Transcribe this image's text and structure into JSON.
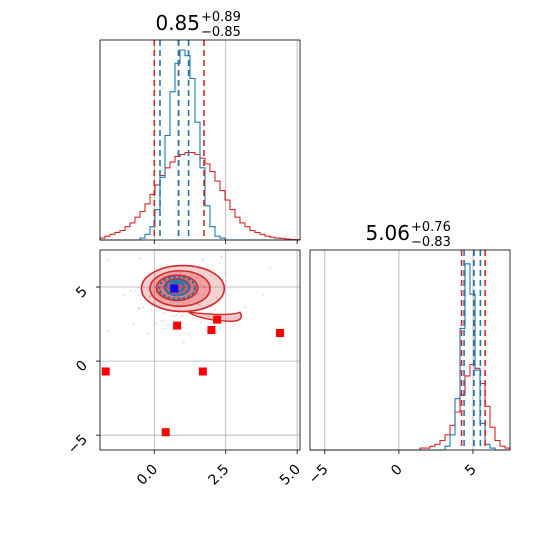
{
  "chart_data": {
    "type": "corner",
    "colors": {
      "blue": "#1f77b4",
      "red": "#d62728",
      "marker_red": "#ff0000",
      "marker_blue": "#0000ff",
      "grid": "#b0b0b0"
    },
    "param_x": {
      "title": {
        "median": "0.85",
        "plus": "+0.89",
        "minus": "−0.85"
      },
      "range": [
        -1.9,
        5.1
      ],
      "ticks": [
        0,
        2.5,
        5
      ],
      "tick_labels": [
        "0.0",
        "2.5",
        "5.0"
      ],
      "quantiles_blue": [
        0.2,
        0.85,
        1.2
      ],
      "quantiles_red": [
        0.0,
        0.85,
        1.74
      ],
      "hist_red": [
        0.01,
        0.02,
        0.03,
        0.04,
        0.05,
        0.07,
        0.09,
        0.12,
        0.15,
        0.19,
        0.24,
        0.29,
        0.34,
        0.38,
        0.41,
        0.44,
        0.45,
        0.46,
        0.46,
        0.45,
        0.43,
        0.4,
        0.36,
        0.31,
        0.26,
        0.21,
        0.16,
        0.12,
        0.09,
        0.07,
        0.05,
        0.04,
        0.03,
        0.02,
        0.015,
        0.01,
        0.008,
        0.005,
        0.003,
        0.002
      ],
      "hist_blue": [
        0,
        0,
        0,
        0,
        0,
        0,
        0,
        0,
        0.01,
        0.03,
        0.07,
        0.16,
        0.33,
        0.55,
        0.78,
        0.93,
        1.0,
        0.97,
        0.85,
        0.62,
        0.38,
        0.18,
        0.07,
        0.02,
        0.01,
        0,
        0,
        0,
        0,
        0,
        0,
        0,
        0,
        0,
        0,
        0,
        0,
        0,
        0,
        0
      ],
      "hist_bins": [
        -1.9,
        5.1
      ]
    },
    "param_y": {
      "title": {
        "median": "5.06",
        "plus": "+0.76",
        "minus": "−0.83"
      },
      "range": [
        -6,
        7.5
      ],
      "ticks": [
        -5,
        0,
        5
      ],
      "tick_labels": [
        "−5",
        "0",
        "5"
      ],
      "quantiles_blue": [
        4.4,
        5.06,
        5.5
      ],
      "quantiles_red": [
        4.23,
        5.06,
        5.82
      ],
      "hist_red": [
        0,
        0,
        0,
        0,
        0,
        0,
        0,
        0,
        0,
        0,
        0,
        0,
        0,
        0,
        0,
        0,
        0,
        0,
        0,
        0,
        0,
        0,
        0.01,
        0.01,
        0.02,
        0.03,
        0.05,
        0.08,
        0.13,
        0.2,
        0.29,
        0.39,
        0.45,
        0.43,
        0.35,
        0.23,
        0.12,
        0.05,
        0.02,
        0.01
      ],
      "hist_blue": [
        0,
        0,
        0,
        0,
        0,
        0,
        0,
        0,
        0,
        0,
        0,
        0,
        0,
        0,
        0,
        0,
        0,
        0,
        0,
        0,
        0,
        0,
        0,
        0,
        0,
        0,
        0,
        0.02,
        0.08,
        0.27,
        0.64,
        0.98,
        0.82,
        0.42,
        0.14,
        0.03,
        0.01,
        0,
        0,
        0
      ],
      "hist_bins": [
        -6,
        7.5
      ]
    },
    "joint": {
      "xlim": [
        -1.9,
        5.1
      ],
      "ylim": [
        -6,
        7.5
      ],
      "red_contours": [
        {
          "cx": 1.0,
          "cy": 4.9,
          "rx": 2.9,
          "ry": 1.55,
          "opacity": 0.35
        },
        {
          "cx": 0.9,
          "cy": 4.9,
          "rx": 2.1,
          "ry": 1.2,
          "opacity": 0.45
        },
        {
          "cx": 0.8,
          "cy": 4.95,
          "rx": 1.45,
          "ry": 0.85,
          "opacity": 0.55
        },
        {
          "cx": 0.8,
          "cy": 5.0,
          "rx": 0.9,
          "ry": 0.55,
          "opacity": 0.7
        }
      ],
      "blue_contours": [
        {
          "cx": 0.8,
          "cy": 4.95,
          "rx": 1.05,
          "ry": 0.75
        },
        {
          "cx": 0.8,
          "cy": 4.95,
          "rx": 0.7,
          "ry": 0.5
        },
        {
          "cx": 0.8,
          "cy": 5.0,
          "rx": 0.4,
          "ry": 0.3
        }
      ],
      "red_squares": [
        {
          "x": 0.8,
          "y": 2.4
        },
        {
          "x": 2.2,
          "y": 2.8
        },
        {
          "x": 2.0,
          "y": 2.1
        },
        {
          "x": 4.4,
          "y": 1.9
        },
        {
          "x": -1.7,
          "y": -0.7
        },
        {
          "x": 1.7,
          "y": -0.7
        },
        {
          "x": 0.4,
          "y": -4.8
        }
      ],
      "blue_square": {
        "x": 0.7,
        "y": 4.9
      }
    }
  }
}
